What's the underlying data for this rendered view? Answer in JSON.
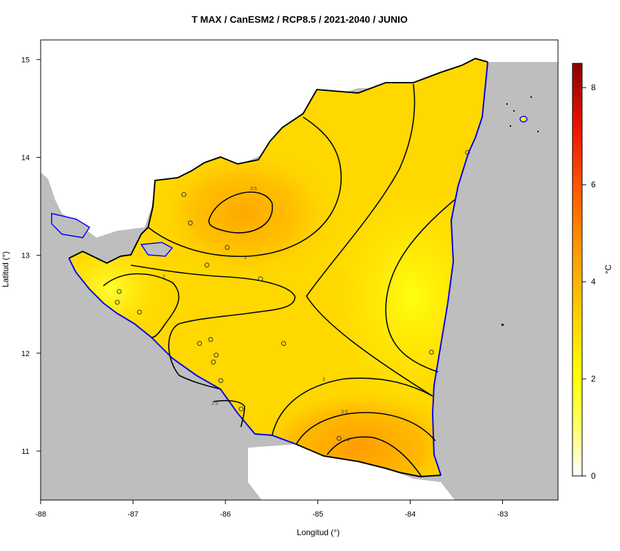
{
  "title": "T MAX / CanESM2 / RCP8.5 / 2021-2040 / JUNIO",
  "xlabel": "Longitud (°)",
  "ylabel": "Latitud (°)",
  "colorbar": {
    "unit": "°C",
    "ticks": [
      "0",
      "2",
      "4",
      "6",
      "8"
    ],
    "range": [
      0,
      8.5
    ],
    "colors": [
      "#ffffff",
      "#ffff33",
      "#ffd400",
      "#ff9900",
      "#ff3300",
      "#cc0000",
      "#8b0000"
    ]
  },
  "map": {
    "x_ticks": [
      "-88",
      "-87",
      "-86",
      "-85",
      "-84",
      "-83"
    ],
    "y_ticks": [
      "11",
      "12",
      "13",
      "14",
      "15"
    ],
    "xlim": [
      -88,
      -82.4
    ],
    "ylim": [
      10.5,
      15.2
    ],
    "land_color": "#bebebe",
    "coast_color": "#0000ff"
  },
  "chart_data": {
    "type": "heatmap",
    "title": "T MAX / CanESM2 / RCP8.5 / 2021-2040 / JUNIO",
    "xlabel": "Longitud (°)",
    "ylabel": "Latitud (°)",
    "xlim": [
      -88,
      -82.4
    ],
    "ylim": [
      10.5,
      15.2
    ],
    "value_range": [
      0,
      8.5
    ],
    "unit": "°C",
    "contour_labels": [
      "3.5",
      "3",
      "2",
      "3",
      "2.5",
      "3.5",
      "4"
    ],
    "stations": [
      [
        -86.45,
        13.62
      ],
      [
        -86.38,
        13.33
      ],
      [
        -85.98,
        13.08
      ],
      [
        -86.2,
        12.9
      ],
      [
        -85.62,
        12.76
      ],
      [
        -87.15,
        12.63
      ],
      [
        -87.17,
        12.52
      ],
      [
        -86.93,
        12.42
      ],
      [
        -86.28,
        12.1
      ],
      [
        -86.16,
        12.14
      ],
      [
        -86.1,
        11.98
      ],
      [
        -86.13,
        11.91
      ],
      [
        -85.37,
        12.1
      ],
      [
        -86.05,
        11.72
      ],
      [
        -85.83,
        11.43
      ],
      [
        -84.77,
        11.13
      ],
      [
        -83.77,
        12.01
      ],
      [
        -83.38,
        14.05
      ]
    ]
  }
}
